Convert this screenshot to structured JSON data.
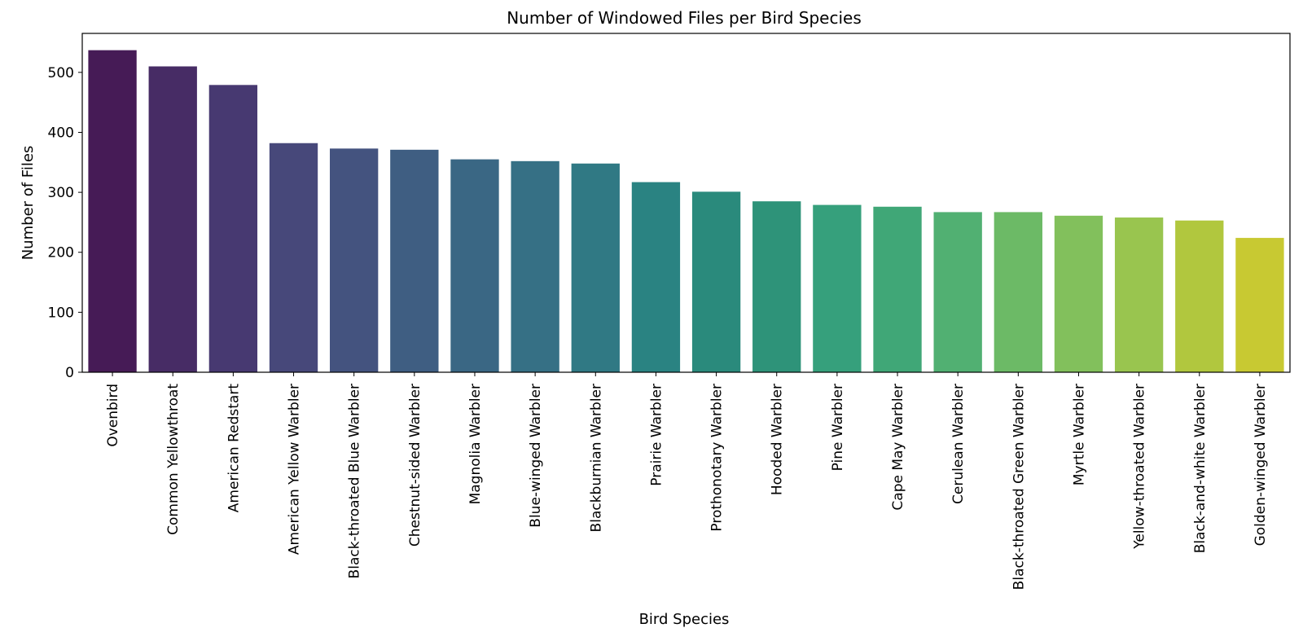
{
  "chart_data": {
    "type": "bar",
    "title": "Number of Windowed Files per Bird Species",
    "xlabel": "Bird Species",
    "ylabel": "Number of Files",
    "ylim": [
      0,
      565
    ],
    "yticks": [
      0,
      100,
      200,
      300,
      400,
      500
    ],
    "grid": false,
    "categories": [
      "Ovenbird",
      "Common Yellowthroat",
      "American Redstart",
      "American Yellow Warbler",
      "Black-throated Blue Warbler",
      "Chestnut-sided Warbler",
      "Magnolia Warbler",
      "Blue-winged Warbler",
      "Blackburnian Warbler",
      "Prairie Warbler",
      "Prothonotary Warbler",
      "Hooded Warbler",
      "Pine Warbler",
      "Cape May Warbler",
      "Cerulean Warbler",
      "Black-throated Green Warbler",
      "Myrtle Warbler",
      "Yellow-throated Warbler",
      "Black-and-white Warbler",
      "Golden-winged Warbler"
    ],
    "values": [
      537,
      510,
      479,
      382,
      373,
      371,
      355,
      352,
      348,
      317,
      301,
      285,
      279,
      276,
      267,
      267,
      261,
      258,
      253,
      224
    ],
    "colors": [
      "#461b56",
      "#472c65",
      "#473971",
      "#47487a",
      "#44537f",
      "#3f5e82",
      "#3a6784",
      "#367085",
      "#307984",
      "#2a8382",
      "#2a8a7c",
      "#2e9379",
      "#36a07c",
      "#40a777",
      "#51b072",
      "#6cba66",
      "#82c05c",
      "#99c54f",
      "#b1c73e",
      "#c8c932"
    ]
  }
}
